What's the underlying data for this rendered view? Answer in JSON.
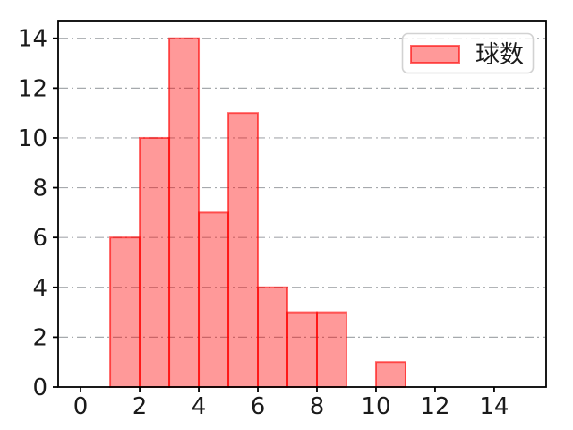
{
  "chart_data": {
    "type": "bar",
    "subtype": "histogram",
    "title": "",
    "xlabel": "",
    "ylabel": "",
    "bins": {
      "start": 0,
      "end": 15,
      "bin_width": 1
    },
    "categories": [
      0,
      1,
      2,
      3,
      4,
      5,
      6,
      7,
      8,
      9,
      10,
      11,
      12,
      13,
      14
    ],
    "values": [
      0,
      6,
      10,
      14,
      7,
      11,
      4,
      3,
      3,
      0,
      1,
      0,
      0,
      0,
      0
    ],
    "xticks": [
      0,
      2,
      4,
      6,
      8,
      10,
      12,
      14
    ],
    "yticks": [
      0,
      2,
      4,
      6,
      8,
      10,
      12,
      14
    ],
    "xlim": [
      -0.76,
      15.76
    ],
    "ylim": [
      0,
      14.71
    ],
    "grid": {
      "axis": "y",
      "linestyle": "dashdot",
      "color": "#a6a9ad"
    },
    "legend": [
      {
        "label": "球数"
      }
    ],
    "legend_position": "upper right",
    "colors": {
      "bar_fill": "#ff9999",
      "bar_fill_base": "#ff0000",
      "bar_fill_opacity": 0.4,
      "bar_edge": "#ff0000",
      "bar_edge_opacity": 0.6,
      "spine": "#000000",
      "tick_label": "#1a1a1a",
      "legend_border": "#d2d2d2",
      "legend_bg": "#ffffff"
    }
  }
}
